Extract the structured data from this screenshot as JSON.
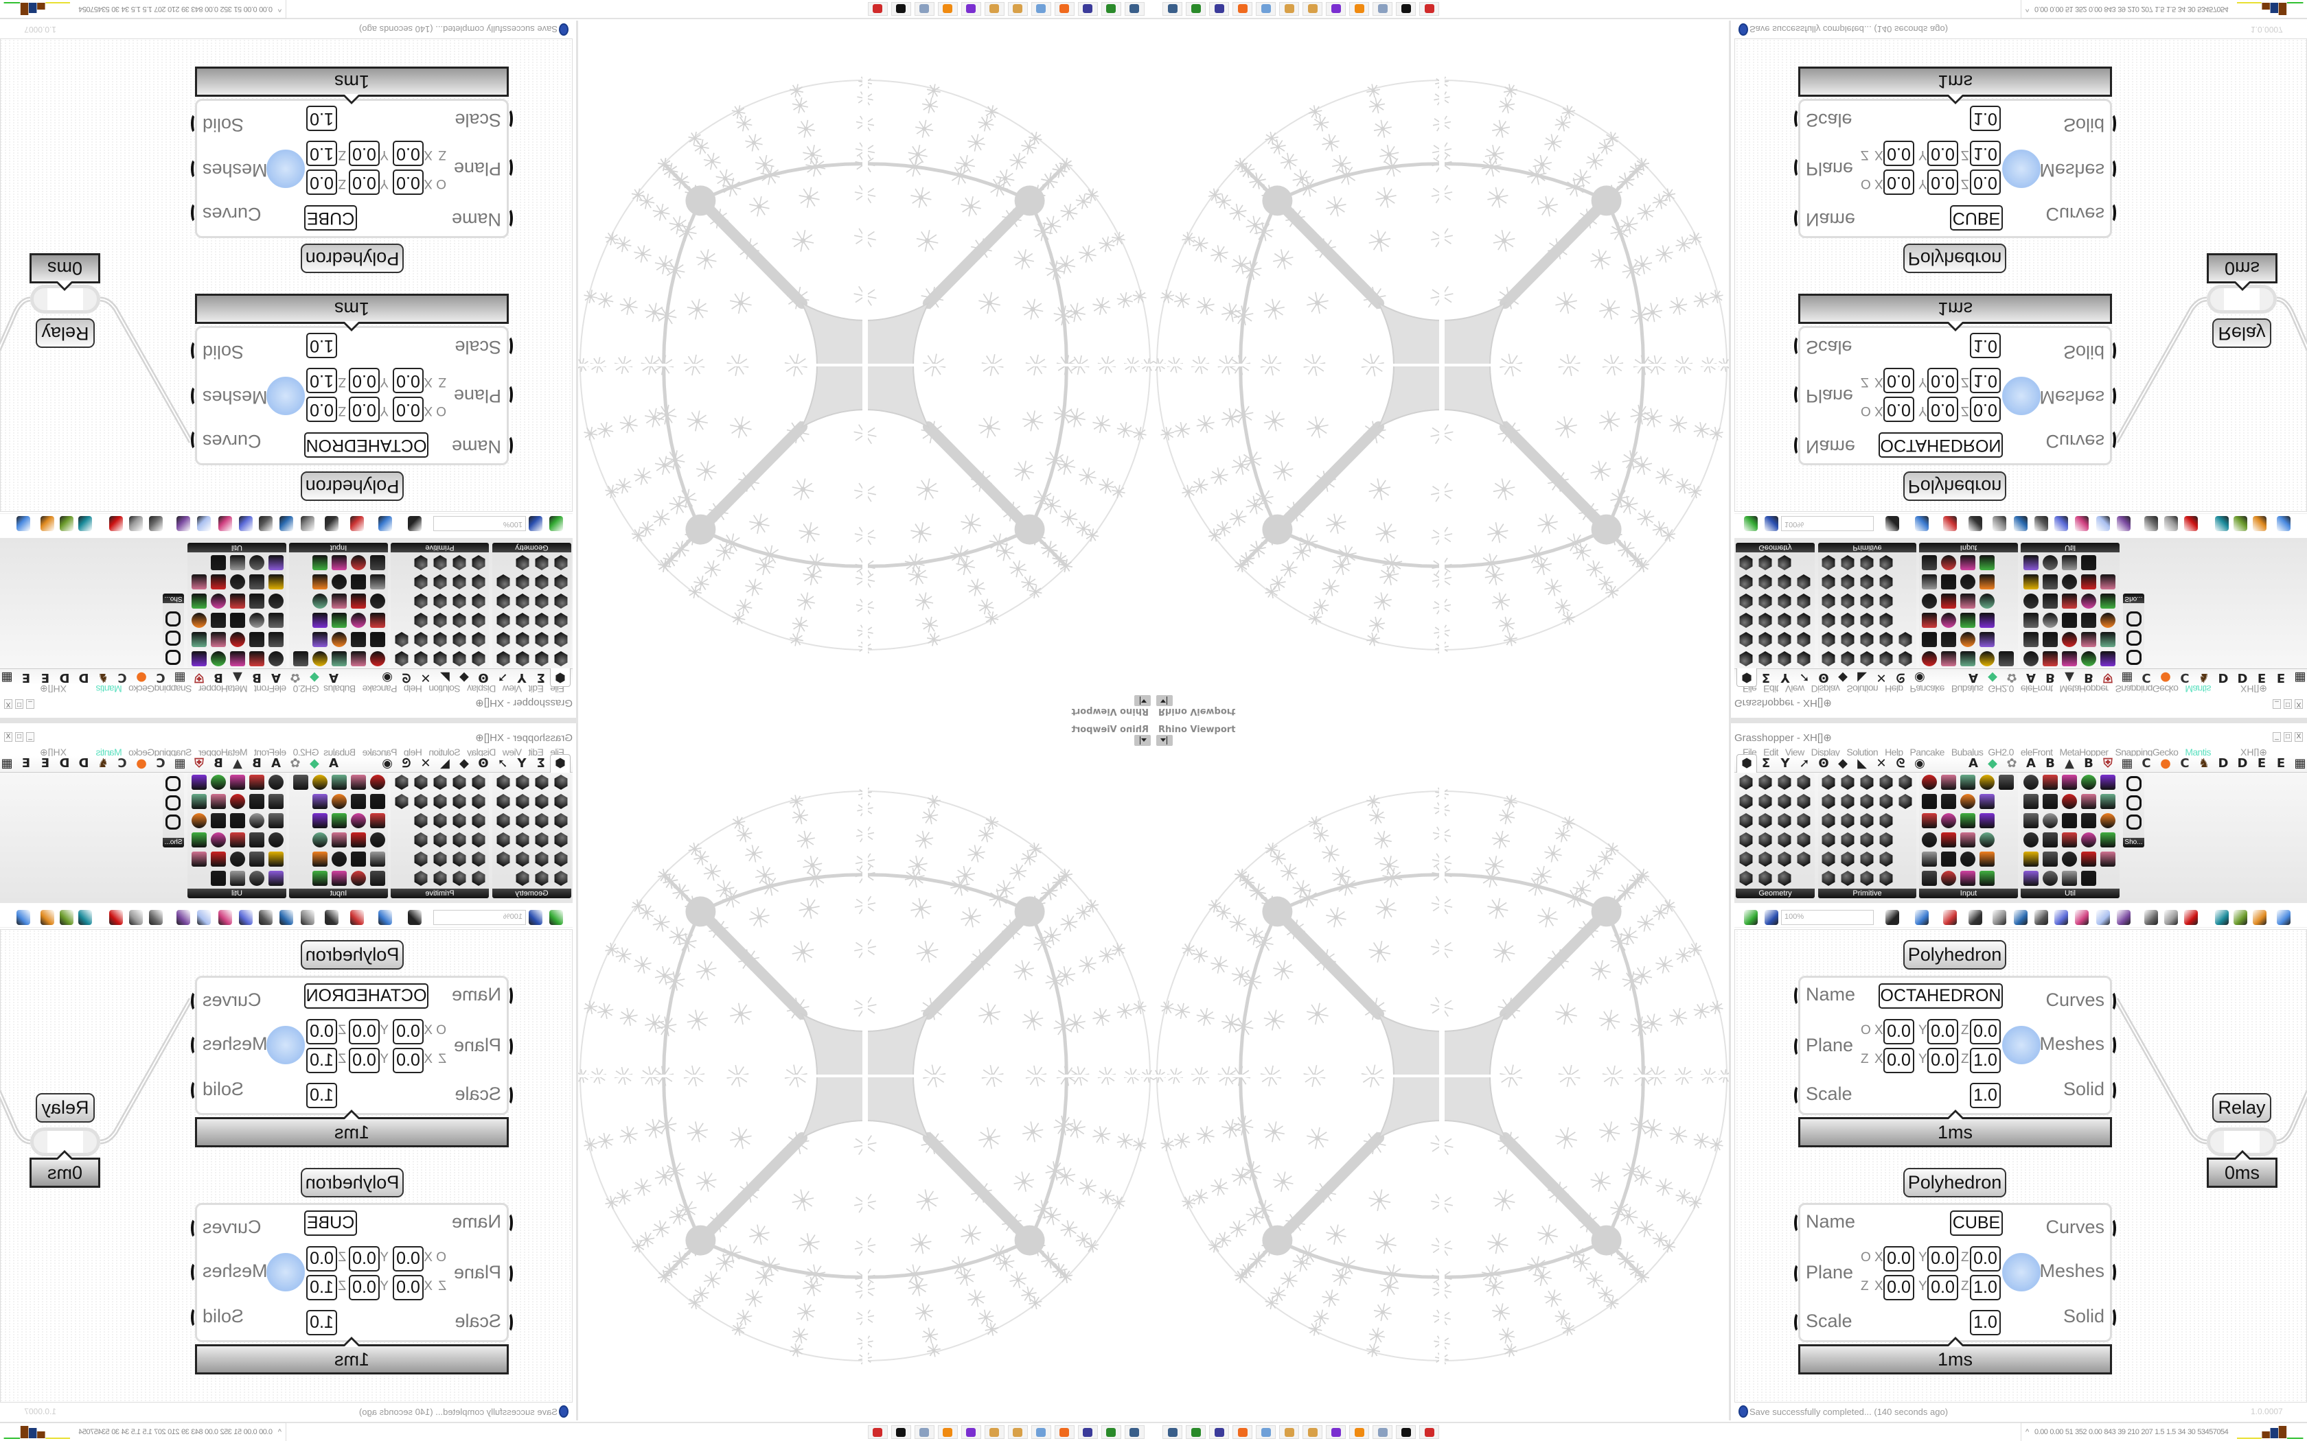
{
  "viewport": {
    "title": "Rhino Viewport"
  },
  "grasshopper": {
    "title": "Grasshopper - XH[]⊕",
    "window_buttons": [
      "_",
      "□",
      "X"
    ],
    "menu": [
      "File",
      "Edit",
      "View",
      "Display",
      "Solution",
      "Help",
      "Pancake",
      "Bubalus_GH2.0",
      "eleFront",
      "MetaHopper",
      "SnappingGecko",
      "Mantis"
    ],
    "menu_right": "XH[]⊕",
    "active_menu_color": "#5ee0c0",
    "tab_icons": [
      "params-hexagon-icon",
      "maths-sigma-icon",
      "sets-tree-icon",
      "vector-arrow-icon",
      "curve-icon",
      "surface-icon",
      "mesh-icon",
      "intersect-icon",
      "transform-icon",
      "display-eye-icon"
    ],
    "tab_glyphs": [
      "⬢",
      "Σ",
      "Y",
      "➚",
      "Ꙩ",
      "◆",
      "◣",
      "✕",
      "ᘓ",
      "◉"
    ],
    "plugin_tabs": [
      "A",
      "◆",
      "✿",
      "A",
      "B",
      "▲",
      "B",
      "⛨",
      "▦",
      "C",
      "●",
      "C",
      "♞",
      "D",
      "D",
      "E",
      "E",
      "▦"
    ],
    "panels": [
      {
        "label": "Geometry"
      },
      {
        "label": "Primitive"
      },
      {
        "label": "Input"
      },
      {
        "label": "Util"
      }
    ],
    "sho_label": "Sho...",
    "zoom": "100%",
    "status": "Save successfully completed... (140 seconds ago)",
    "version": "1.0.0007"
  },
  "canvas": {
    "inputs": [
      "Name",
      "Plane",
      "Scale"
    ],
    "outputs": [
      "Curves",
      "Meshes",
      "Solid"
    ],
    "axis": {
      "origin": "O",
      "zaxis": "Z",
      "x": "X",
      "y": "Y",
      "z": "Z"
    },
    "components": [
      {
        "title": "Polyhedron",
        "name": "OCTAHEDRON",
        "origin": [
          "0.0",
          "0.0",
          "0.0"
        ],
        "zaxis": [
          "0.0",
          "0.0",
          "1.0"
        ],
        "scale": "1.0",
        "time": "1ms"
      },
      {
        "title": "Polyhedron",
        "name": "CUBE",
        "origin": [
          "0.0",
          "0.0",
          "0.0"
        ],
        "zaxis": [
          "0.0",
          "0.0",
          "1.0"
        ],
        "scale": "1.0",
        "time": "1ms"
      }
    ],
    "relay": {
      "label": "Relay",
      "time": "0ms"
    }
  },
  "taskbar": {
    "apps": [
      "remote-desktop-icon",
      "terminal-icon",
      "c64-disk-icon",
      "firefox-icon",
      "calculator-icon",
      "paint-icon",
      "paint-icon",
      "chat-app-icon",
      "blender-icon",
      "notes-icon",
      "inkscape-icon",
      "red-app-icon"
    ],
    "app_colors": [
      "#3a5f8a",
      "#2a8a2a",
      "#3b3b9a",
      "#f06a1d",
      "#6fa0d8",
      "#d8a048",
      "#d8a048",
      "#7a2fd0",
      "#f08a10",
      "#8aa0c0",
      "#111111",
      "#d02a2a"
    ],
    "expand": "^",
    "perf": [
      "0.00",
      "0.00",
      "51",
      "352",
      "0.00",
      "843",
      "39",
      "210",
      "207",
      "1.5",
      "1.5",
      "34",
      "30",
      "53457054"
    ]
  }
}
